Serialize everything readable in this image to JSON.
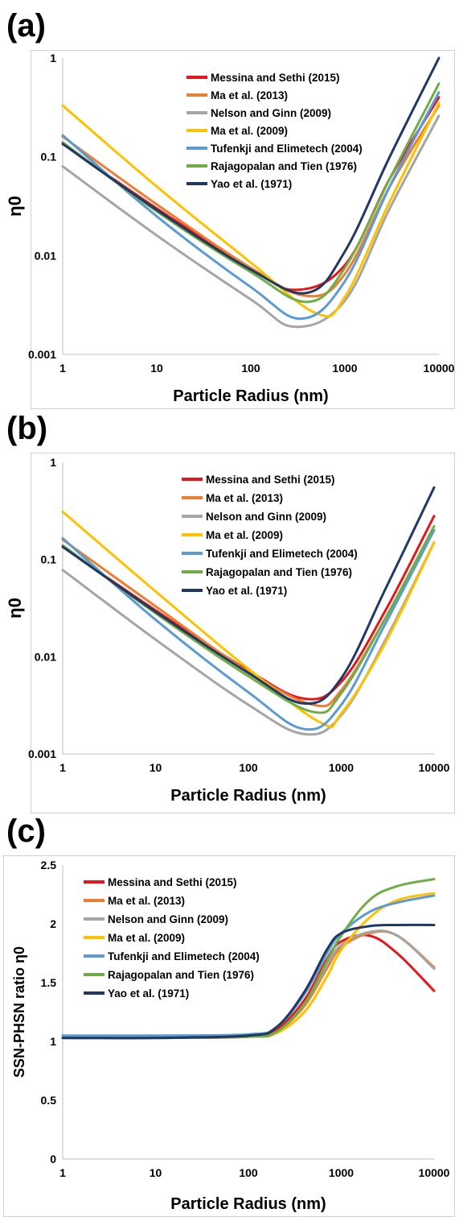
{
  "panels": [
    {
      "letter": "(a)"
    },
    {
      "letter": "(b)"
    },
    {
      "letter": "(c)"
    }
  ],
  "series_colors": {
    "Messina and Sethi (2015)": "#e8161a",
    "Ma et al. (2013)": "#ed7d31",
    "Nelson and Ginn (2009)": "#a5a5a5",
    "Ma et al. (2009)": "#ffc000",
    "Tufenkji and Elimetech (2004)": "#5b9bd5",
    "Rajagopalan and Tien (1976)": "#70ad47",
    "Yao et al. (1971)": "#1f3864"
  },
  "chart_data": [
    {
      "type": "line",
      "xlabel": "Particle Radius (nm)",
      "ylabel": "η0",
      "xscale": "log",
      "yscale": "log",
      "xlim": [
        1,
        10000
      ],
      "ylim": [
        0.001,
        1
      ],
      "xticks": [
        "1",
        "10",
        "100",
        "1000",
        "10000"
      ],
      "yticks": [
        "0.001",
        "0.01",
        "0.1",
        "1"
      ],
      "grid": false,
      "legend_position": "top-center",
      "series": [
        {
          "name": "Messina and Sethi (2015)",
          "x": [
            1,
            10,
            100,
            300,
            1000,
            3000,
            10000
          ],
          "y": [
            0.135,
            0.03,
            0.0075,
            0.0045,
            0.008,
            0.06,
            0.4
          ]
        },
        {
          "name": "Ma et al. (2013)",
          "x": [
            1,
            10,
            100,
            400,
            1000,
            3000,
            10000
          ],
          "y": [
            0.16,
            0.033,
            0.0075,
            0.0039,
            0.0065,
            0.05,
            0.33
          ]
        },
        {
          "name": "Nelson and Ginn (2009)",
          "x": [
            1,
            10,
            100,
            300,
            1000,
            3000,
            10000
          ],
          "y": [
            0.08,
            0.016,
            0.0036,
            0.0019,
            0.0035,
            0.03,
            0.26
          ]
        },
        {
          "name": "Ma et al. (2009)",
          "x": [
            1,
            10,
            100,
            500,
            1000,
            3000,
            10000
          ],
          "y": [
            0.33,
            0.05,
            0.0085,
            0.0026,
            0.0038,
            0.035,
            0.35
          ]
        },
        {
          "name": "Tufenkji and Elimetech (2004)",
          "x": [
            1,
            10,
            100,
            350,
            1000,
            3000,
            10000
          ],
          "y": [
            0.165,
            0.025,
            0.0048,
            0.0023,
            0.0055,
            0.05,
            0.45
          ]
        },
        {
          "name": "Rajagopalan and Tien (1976)",
          "x": [
            1,
            10,
            100,
            400,
            1000,
            3000,
            10000
          ],
          "y": [
            0.14,
            0.028,
            0.0068,
            0.0034,
            0.0075,
            0.06,
            0.55
          ]
        },
        {
          "name": "Yao et al. (1971)",
          "x": [
            1,
            10,
            100,
            400,
            1000,
            3000,
            10000
          ],
          "y": [
            0.135,
            0.029,
            0.0072,
            0.0042,
            0.011,
            0.1,
            1.0
          ]
        }
      ]
    },
    {
      "type": "line",
      "xlabel": "Particle Radius (nm)",
      "ylabel": "η0",
      "xscale": "log",
      "yscale": "log",
      "xlim": [
        1,
        10000
      ],
      "ylim": [
        0.001,
        1
      ],
      "xticks": [
        "1",
        "10",
        "100",
        "1000",
        "10000"
      ],
      "yticks": [
        "0.001",
        "0.01",
        "0.1",
        "1"
      ],
      "grid": false,
      "legend_position": "top-center",
      "series": [
        {
          "name": "Messina and Sethi (2015)",
          "x": [
            1,
            10,
            100,
            400,
            1000,
            3000,
            10000
          ],
          "y": [
            0.135,
            0.03,
            0.0072,
            0.0037,
            0.0055,
            0.03,
            0.28
          ]
        },
        {
          "name": "Ma et al. (2013)",
          "x": [
            1,
            10,
            100,
            500,
            1000,
            3000,
            10000
          ],
          "y": [
            0.16,
            0.033,
            0.007,
            0.0032,
            0.0045,
            0.025,
            0.2
          ]
        },
        {
          "name": "Nelson and Ginn (2009)",
          "x": [
            1,
            10,
            100,
            400,
            1000,
            3000,
            10000
          ],
          "y": [
            0.078,
            0.015,
            0.0032,
            0.0016,
            0.0025,
            0.015,
            0.15
          ]
        },
        {
          "name": "Ma et al. (2009)",
          "x": [
            1,
            10,
            100,
            600,
            1000,
            3000,
            10000
          ],
          "y": [
            0.31,
            0.047,
            0.0075,
            0.0021,
            0.0026,
            0.014,
            0.15
          ]
        },
        {
          "name": "Tufenkji and Elimetech (2004)",
          "x": [
            1,
            10,
            100,
            400,
            1000,
            3000,
            10000
          ],
          "y": [
            0.165,
            0.024,
            0.0043,
            0.0018,
            0.0032,
            0.022,
            0.2
          ]
        },
        {
          "name": "Rajagopalan and Tien (1976)",
          "x": [
            1,
            10,
            100,
            500,
            1000,
            3000,
            10000
          ],
          "y": [
            0.14,
            0.028,
            0.0063,
            0.0027,
            0.0042,
            0.025,
            0.22
          ]
        },
        {
          "name": "Yao et al. (1971)",
          "x": [
            1,
            10,
            100,
            400,
            1000,
            3000,
            10000
          ],
          "y": [
            0.135,
            0.029,
            0.0068,
            0.0033,
            0.006,
            0.05,
            0.55
          ]
        }
      ]
    },
    {
      "type": "line",
      "xlabel": "Particle Radius (nm)",
      "ylabel": "SSN-PHSN ratio η0",
      "xscale": "log",
      "yscale": "linear",
      "xlim": [
        1,
        10000
      ],
      "ylim": [
        0,
        2.5
      ],
      "xticks": [
        "1",
        "10",
        "100",
        "1000",
        "10000"
      ],
      "yticks": [
        "0",
        "0.5",
        "1",
        "1.5",
        "2",
        "2.5"
      ],
      "grid": false,
      "legend_position": "top-left",
      "series": [
        {
          "name": "Messina and Sethi (2015)",
          "x": [
            1,
            10,
            100,
            200,
            400,
            700,
            1000,
            2000,
            4000,
            10000
          ],
          "y": [
            1.03,
            1.03,
            1.04,
            1.1,
            1.35,
            1.7,
            1.85,
            1.9,
            1.75,
            1.43
          ]
        },
        {
          "name": "Ma et al. (2013)",
          "x": [
            1,
            10,
            100,
            200,
            400,
            700,
            1000,
            2000,
            4000,
            10000
          ],
          "y": [
            1.03,
            1.03,
            1.04,
            1.08,
            1.3,
            1.62,
            1.8,
            1.92,
            1.9,
            1.63
          ]
        },
        {
          "name": "Nelson and Ginn (2009)",
          "x": [
            1,
            10,
            100,
            200,
            400,
            700,
            1000,
            2000,
            4000,
            10000
          ],
          "y": [
            1.03,
            1.03,
            1.04,
            1.08,
            1.32,
            1.65,
            1.82,
            1.93,
            1.9,
            1.62
          ]
        },
        {
          "name": "Ma et al. (2009)",
          "x": [
            1,
            10,
            100,
            200,
            400,
            700,
            1000,
            2000,
            4000,
            10000
          ],
          "y": [
            1.03,
            1.03,
            1.04,
            1.07,
            1.25,
            1.55,
            1.78,
            2.05,
            2.2,
            2.26
          ]
        },
        {
          "name": "Tufenkji and Elimetech (2004)",
          "x": [
            1,
            10,
            100,
            200,
            400,
            700,
            1000,
            2000,
            4000,
            10000
          ],
          "y": [
            1.05,
            1.05,
            1.06,
            1.12,
            1.4,
            1.75,
            1.92,
            2.1,
            2.18,
            2.24
          ]
        },
        {
          "name": "Rajagopalan and Tien (1976)",
          "x": [
            1,
            10,
            100,
            200,
            400,
            700,
            1000,
            2000,
            4000,
            10000
          ],
          "y": [
            1.03,
            1.03,
            1.04,
            1.08,
            1.32,
            1.68,
            1.9,
            2.2,
            2.32,
            2.38
          ]
        },
        {
          "name": "Yao et al. (1971)",
          "x": [
            1,
            10,
            100,
            200,
            400,
            700,
            1000,
            2000,
            4000,
            10000
          ],
          "y": [
            1.03,
            1.03,
            1.05,
            1.12,
            1.42,
            1.78,
            1.92,
            1.98,
            1.99,
            1.99
          ]
        }
      ]
    }
  ]
}
